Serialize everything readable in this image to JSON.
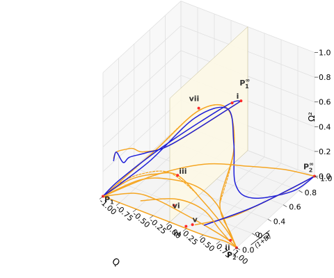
{
  "chart_data": {
    "type": "line",
    "title": "",
    "xlabel": "Q",
    "ylabel_parts": [
      "D",
      "(1+D)"
    ],
    "zlabel": "Ω²",
    "xlim": [
      -1.0,
      1.0
    ],
    "ylim": [
      0.0,
      1.0
    ],
    "zlim": [
      0.0,
      1.0
    ],
    "grid": true,
    "x_ticks": [
      "-1.00",
      "-0.75",
      "-0.50",
      "-0.25",
      "0.00",
      "0.25",
      "0.50",
      "0.75",
      "1.00"
    ],
    "y_ticks": [
      "0.0",
      "0.2",
      "0.4",
      "0.6",
      "0.8",
      "1.0"
    ],
    "z_ticks": [
      "0.0",
      "0.2",
      "0.4",
      "0.6",
      "0.8",
      "1.0"
    ],
    "plane": {
      "x": 0.0,
      "color": "#fdf8e6"
    },
    "colors": {
      "orange": "#f5a623",
      "blue": "#1f1fd8",
      "grid": "#e0e0e0",
      "point": "#ff2a2a"
    },
    "points": [
      {
        "label": "P₁",
        "base": "P",
        "sub": "1",
        "sup": "",
        "x": -1.0,
        "y": 0.0,
        "z": 0.0
      },
      {
        "label": "P₂",
        "base": "P",
        "sub": "2",
        "sup": "",
        "x": 1.0,
        "y": 0.0,
        "z": 0.0
      },
      {
        "label": "P₁∞",
        "base": "P",
        "sub": "1",
        "sup": "∞",
        "x": -0.1,
        "y": 1.0,
        "z": 0.38
      },
      {
        "label": "P₂∞",
        "base": "P",
        "sub": "2",
        "sup": "∞",
        "x": 1.0,
        "y": 1.0,
        "z": 0.0
      },
      {
        "label": "i",
        "base": "i",
        "sub": "",
        "sup": "",
        "x": 0.0,
        "y": 0.8,
        "z": 0.5
      },
      {
        "label": "ii",
        "base": "ii",
        "sub": "",
        "sup": "",
        "x": 0.85,
        "y": 0.05,
        "z": 0.0
      },
      {
        "label": "iii",
        "base": "iii",
        "sub": "",
        "sup": "",
        "x": 0.0,
        "y": 0.1,
        "z": 0.32
      },
      {
        "label": "iv",
        "base": "iv",
        "sub": "",
        "sup": "",
        "x": 0.22,
        "y": 0.02,
        "z": 0.0
      },
      {
        "label": "v",
        "base": "v",
        "sub": "",
        "sup": "",
        "x": 0.27,
        "y": 0.06,
        "z": 0.0
      },
      {
        "label": "vi",
        "base": "vi",
        "sub": "",
        "sup": "",
        "x": -0.15,
        "y": 0.18,
        "z": 0.0
      },
      {
        "label": "vii",
        "base": "vii",
        "sub": "",
        "sup": "",
        "x": -0.15,
        "y": 0.5,
        "z": 0.6
      }
    ],
    "series": [
      {
        "color": "orange",
        "dashed": false,
        "points": [
          [
            -1.0,
            0.0,
            0.0
          ],
          [
            -0.5,
            0.0,
            0.0
          ],
          [
            0.0,
            0.0,
            0.0
          ],
          [
            0.5,
            0.0,
            0.0
          ],
          [
            0.8,
            0.02,
            0.0
          ],
          [
            1.0,
            0.0,
            0.0
          ]
        ]
      },
      {
        "color": "orange",
        "dashed": false,
        "points": [
          [
            -1.0,
            0.0,
            0.0
          ],
          [
            -0.7,
            0.15,
            0.0
          ],
          [
            -0.4,
            0.17,
            0.0
          ],
          [
            0.0,
            0.14,
            0.0
          ],
          [
            0.4,
            0.1,
            0.0
          ],
          [
            0.8,
            0.05,
            0.0
          ],
          [
            1.0,
            0.0,
            0.0
          ]
        ]
      },
      {
        "color": "orange",
        "dashed": false,
        "points": [
          [
            -1.0,
            0.0,
            0.0
          ],
          [
            -0.8,
            0.3,
            0.0
          ],
          [
            -0.5,
            0.42,
            0.0
          ],
          [
            -0.1,
            0.45,
            0.0
          ],
          [
            0.3,
            0.35,
            0.0
          ],
          [
            0.7,
            0.15,
            0.0
          ],
          [
            1.0,
            0.0,
            0.0
          ]
        ]
      },
      {
        "color": "orange",
        "dashed": false,
        "points": [
          [
            -1.0,
            0.0,
            0.0
          ],
          [
            -0.65,
            0.05,
            0.18
          ],
          [
            -0.3,
            0.08,
            0.28
          ],
          [
            0.0,
            0.1,
            0.32
          ],
          [
            0.4,
            0.07,
            0.22
          ],
          [
            0.8,
            0.04,
            0.08
          ],
          [
            1.0,
            0.0,
            0.0
          ]
        ]
      },
      {
        "color": "orange",
        "dashed": true,
        "points": [
          [
            -0.85,
            0.05,
            0.1
          ],
          [
            -0.55,
            0.09,
            0.22
          ],
          [
            -0.15,
            0.12,
            0.3
          ],
          [
            0.3,
            0.09,
            0.24
          ]
        ]
      },
      {
        "color": "orange",
        "dashed": false,
        "points": [
          [
            -1.0,
            0.0,
            0.0
          ],
          [
            -0.55,
            0.3,
            0.3
          ],
          [
            -0.15,
            0.5,
            0.58
          ],
          [
            0.05,
            0.7,
            0.52
          ],
          [
            0.2,
            0.65,
            0.25
          ],
          [
            0.4,
            0.3,
            0.06
          ],
          [
            0.8,
            0.1,
            0.01
          ],
          [
            1.0,
            0.0,
            0.0
          ]
        ]
      },
      {
        "color": "orange",
        "dashed": true,
        "points": [
          [
            -0.55,
            0.3,
            0.3
          ],
          [
            -0.15,
            0.5,
            0.58
          ],
          [
            0.05,
            0.7,
            0.52
          ],
          [
            0.2,
            0.65,
            0.25
          ],
          [
            0.4,
            0.3,
            0.06
          ]
        ]
      },
      {
        "color": "blue",
        "dashed": false,
        "points": [
          [
            -1.0,
            0.0,
            0.0
          ],
          [
            -0.6,
            0.25,
            0.22
          ],
          [
            -0.15,
            0.45,
            0.55
          ],
          [
            0.05,
            0.7,
            0.52
          ],
          [
            0.2,
            0.65,
            0.3
          ],
          [
            0.4,
            0.5,
            0.1
          ],
          [
            0.65,
            0.5,
            0.04
          ],
          [
            0.95,
            0.75,
            0.01
          ],
          [
            1.0,
            1.0,
            0.0
          ]
        ]
      },
      {
        "color": "orange",
        "dashed": false,
        "points": [
          [
            -0.9,
            0.05,
            0.3
          ],
          [
            -0.8,
            0.0,
            0.4
          ],
          [
            -0.7,
            0.04,
            0.42
          ],
          [
            -0.55,
            0.0,
            0.48
          ],
          [
            -0.45,
            0.06,
            0.44
          ],
          [
            -0.3,
            0.3,
            0.4
          ],
          [
            -0.1,
            1.0,
            0.38
          ]
        ]
      },
      {
        "color": "blue",
        "dashed": false,
        "points": [
          [
            -0.9,
            0.05,
            0.28
          ],
          [
            -0.8,
            0.0,
            0.4
          ],
          [
            -0.72,
            0.02,
            0.32
          ],
          [
            -0.6,
            0.0,
            0.4
          ],
          [
            -0.45,
            0.08,
            0.42
          ],
          [
            -0.3,
            0.3,
            0.4
          ],
          [
            -0.1,
            1.0,
            0.38
          ]
        ]
      },
      {
        "color": "blue",
        "dashed": false,
        "points": [
          [
            -1.0,
            0.0,
            0.0
          ],
          [
            -0.8,
            0.05,
            0.15
          ],
          [
            -0.5,
            0.4,
            0.3
          ],
          [
            -0.2,
            0.9,
            0.38
          ],
          [
            -0.1,
            1.0,
            0.38
          ]
        ]
      },
      {
        "color": "orange",
        "dashed": false,
        "points": [
          [
            -1.0,
            0.0,
            0.0
          ],
          [
            -0.7,
            0.4,
            0.0
          ],
          [
            -0.3,
            0.7,
            0.0
          ],
          [
            0.2,
            0.85,
            0.0
          ],
          [
            0.6,
            0.95,
            0.0
          ],
          [
            1.0,
            1.0,
            0.0
          ]
        ]
      },
      {
        "color": "orange",
        "dashed": false,
        "points": [
          [
            0.3,
            0.07,
            0.0
          ],
          [
            0.6,
            0.3,
            0.0
          ],
          [
            0.85,
            0.7,
            0.0
          ],
          [
            1.0,
            1.0,
            0.0
          ]
        ]
      },
      {
        "color": "blue",
        "dashed": false,
        "points": [
          [
            0.4,
            0.1,
            0.0
          ],
          [
            0.7,
            0.45,
            0.0
          ],
          [
            0.9,
            0.8,
            0.0
          ],
          [
            1.0,
            1.0,
            0.0
          ]
        ]
      },
      {
        "color": "orange",
        "dashed": false,
        "points": [
          [
            -0.55,
            0.1,
            0.0
          ],
          [
            -0.2,
            0.25,
            0.0
          ],
          [
            0.2,
            0.25,
            0.0
          ],
          [
            0.6,
            0.12,
            0.0
          ],
          [
            0.85,
            0.04,
            0.0
          ]
        ]
      }
    ]
  }
}
